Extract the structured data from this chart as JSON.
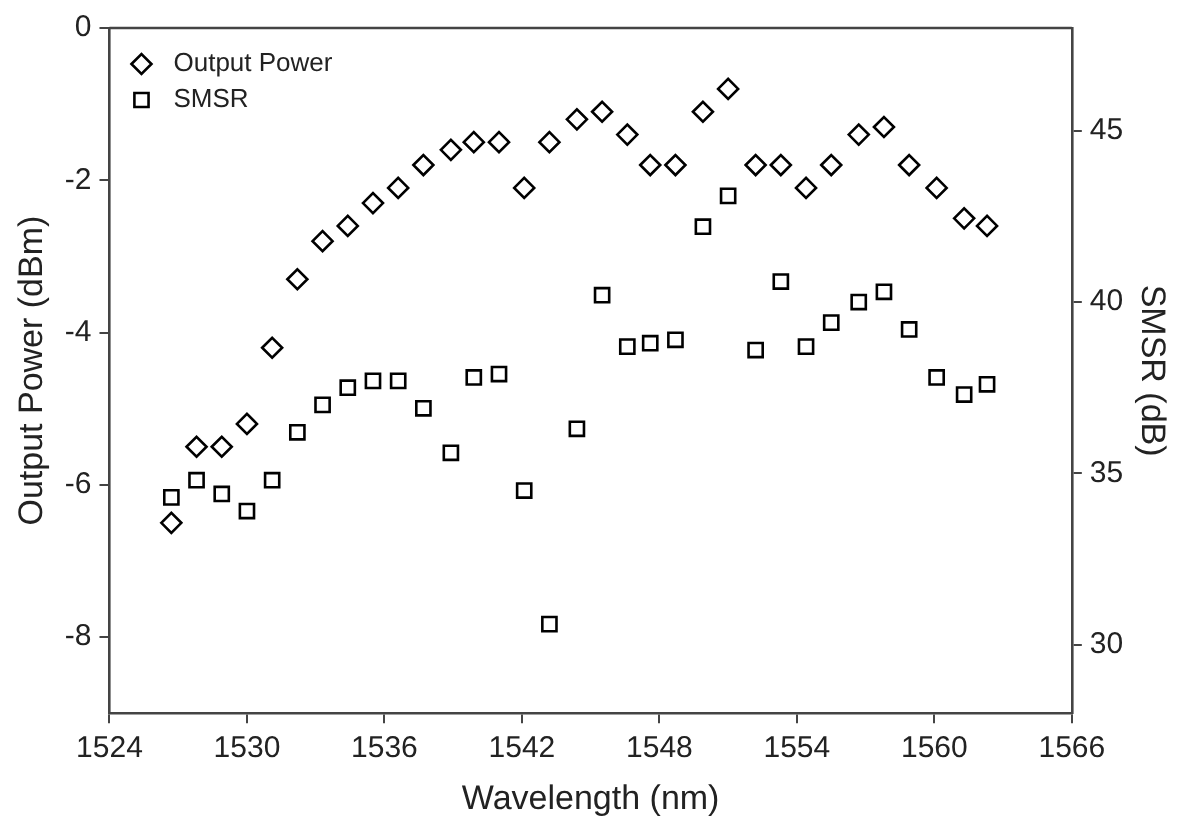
{
  "chart_data": {
    "type": "scatter",
    "xlabel": "Wavelength (nm)",
    "ylabel": "Output Power (dBm)",
    "y2label": "SMSR (dB)",
    "x": [
      1526.7,
      1527.8,
      1528.9,
      1530.0,
      1531.1,
      1532.2,
      1533.3,
      1534.4,
      1535.5,
      1536.6,
      1537.7,
      1538.9,
      1539.9,
      1541.0,
      1542.1,
      1543.2,
      1544.4,
      1545.5,
      1546.6,
      1547.6,
      1548.7,
      1549.9,
      1551.0,
      1552.2,
      1553.3,
      1554.4,
      1555.5,
      1556.7,
      1557.8,
      1558.9,
      1560.1,
      1561.3,
      1562.3
    ],
    "series": [
      {
        "name": "Output Power",
        "color": "#000000",
        "marker": "diamond",
        "values": [
          -6.5,
          -5.5,
          -5.5,
          -5.2,
          -4.2,
          -3.3,
          -2.8,
          -2.6,
          -2.3,
          -2.1,
          -1.8,
          -1.6,
          -1.5,
          -1.5,
          -2.1,
          -1.5,
          -1.2,
          -1.1,
          -1.4,
          -1.8,
          -1.8,
          -1.1,
          -0.8,
          -1.8,
          -1.8,
          -2.1,
          -1.8,
          -1.4,
          -1.3,
          -1.8,
          -2.1,
          -2.5,
          -2.6
        ]
      },
      {
        "name": "SMSR",
        "color": "#000000",
        "marker": "square",
        "axis": "y2",
        "values": [
          34.3,
          34.8,
          34.4,
          33.9,
          34.8,
          36.2,
          37.0,
          37.5,
          37.7,
          37.7,
          36.9,
          35.6,
          37.8,
          37.9,
          34.5,
          30.6,
          36.3,
          40.2,
          38.7,
          38.8,
          38.9,
          42.2,
          43.1,
          38.6,
          40.6,
          38.7,
          39.4,
          40.0,
          40.3,
          39.2,
          37.8,
          37.3,
          37.6
        ]
      }
    ],
    "xlim": [
      1524,
      1566
    ],
    "xticks": [
      1524,
      1530,
      1536,
      1542,
      1548,
      1554,
      1560,
      1566
    ],
    "ylim": [
      -9,
      0
    ],
    "yticks": [
      0,
      -2,
      -4,
      -6,
      -8
    ],
    "y2lim": [
      28,
      48
    ],
    "y2ticks": [
      30,
      35,
      40,
      45
    ],
    "legend": "top left"
  }
}
